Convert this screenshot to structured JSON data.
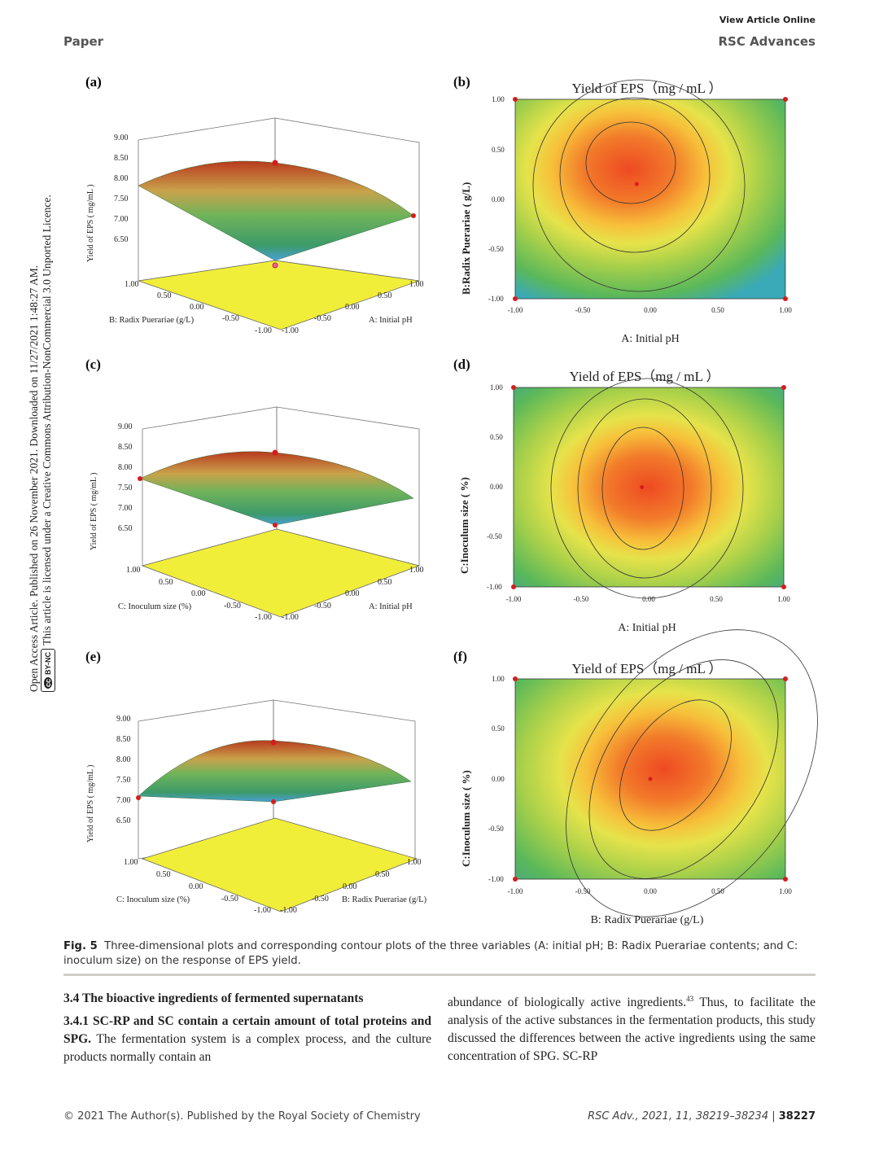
{
  "header": {
    "view_online": "View Article Online",
    "section": "Paper",
    "journal": "RSC Advances"
  },
  "sidebar": {
    "line1": "Open Access Article. Published on 26 November 2021. Downloaded on 11/27/2021 1:48:27 AM.",
    "line2": "This article is licensed under a Creative Commons Attribution-NonCommercial 3.0 Unported Licence.",
    "badge": "BY-NC"
  },
  "figure": {
    "caption_label": "Fig. 5",
    "caption_text": "Three-dimensional plots and corresponding contour plots of the three variables (A: initial pH; B: Radix Puerariae contents; and C: inoculum size) on the response of EPS yield."
  },
  "chart_data": [
    {
      "type": "surface3d",
      "panel": "(a)",
      "zlabel": "Yield of EPS ( mg/mL )",
      "xlabel": "A: Initial pH",
      "ylabel": "B: Radix Puerariae (g/L)",
      "zticks": [
        "9.00",
        "8.50",
        "8.00",
        "7.50",
        "7.00",
        "6.50"
      ],
      "xticks": [
        "-1.00",
        "-0.50",
        "0.00",
        "0.50",
        "1.00"
      ],
      "yticks": [
        "1.00",
        "0.50",
        "0.00",
        "-0.50",
        "-1.00"
      ]
    },
    {
      "type": "contour",
      "panel": "(b)",
      "title": "Yield of EPS（mg / mL ）",
      "xlabel": "A: Initial pH",
      "ylabel": "B:Radix Puerariae ( g/L)",
      "xticks": [
        "-1.00",
        "-0.50",
        "0.00",
        "0.50",
        "1.00"
      ],
      "yticks": [
        "1.00",
        "0.50",
        "0.00",
        "-0.50",
        "-1.00"
      ],
      "optimum": [
        -0.1,
        0.15
      ]
    },
    {
      "type": "surface3d",
      "panel": "(c)",
      "zlabel": "Yield of EPS ( mg/mL )",
      "xlabel": "A: Initial pH",
      "ylabel": "C: Inoculum size (%)",
      "zticks": [
        "9.00",
        "8.50",
        "8.00",
        "7.50",
        "7.00",
        "6.50"
      ],
      "xticks": [
        "-1.00",
        "-0.50",
        "0.00",
        "0.50",
        "1.00"
      ],
      "yticks": [
        "1.00",
        "0.50",
        "0.00",
        "-0.50",
        "-1.00"
      ]
    },
    {
      "type": "contour",
      "panel": "(d)",
      "title": "Yield of EPS（mg / mL ）",
      "xlabel": "A: Initial pH",
      "ylabel": "C:Inoculum size ( %)",
      "xticks": [
        "-1.00",
        "-0.50",
        "0.00",
        "0.50",
        "1.00"
      ],
      "yticks": [
        "1.00",
        "0.50",
        "0.00",
        "-0.50",
        "-1.00"
      ],
      "optimum": [
        -0.05,
        0.0
      ]
    },
    {
      "type": "surface3d",
      "panel": "(e)",
      "zlabel": "Yield of EPS ( mg/mL )",
      "xlabel": "B: Radix Puerariae (g/L)",
      "ylabel": "C: Inoculum size (%)",
      "zticks": [
        "9.00",
        "8.50",
        "8.00",
        "7.50",
        "7.00",
        "6.50"
      ],
      "xticks": [
        "-1.00",
        "-0.50",
        "0.00",
        "0.50",
        "1.00"
      ],
      "yticks": [
        "1.00",
        "0.50",
        "0.00",
        "-0.50",
        "-1.00"
      ]
    },
    {
      "type": "contour",
      "panel": "(f)",
      "title": "Yield of EPS（mg / mL ）",
      "xlabel": "B: Radix Puerariae (g/L)",
      "ylabel": "C:Inoculum size ( %)",
      "xticks": [
        "-1.00",
        "-0.50",
        "0.00",
        "0.50",
        "1.00"
      ],
      "yticks": [
        "1.00",
        "0.50",
        "0.00",
        "-0.50",
        "-1.00"
      ],
      "optimum": [
        0.0,
        0.0
      ]
    }
  ],
  "body": {
    "section_heading": "3.4  The bioactive ingredients of fermented supernatants",
    "subsection_heading": "3.4.1  SC-RP and SC contain a certain amount of total proteins and SPG.",
    "left_text": " The fermentation system is a complex process, and the culture products normally contain an",
    "right_text_a": "abundance of biologically active ingredients.",
    "right_ref": "43",
    "right_text_b": " Thus, to facilitate the analysis of the active substances in the fermentation products, this study discussed the differences between the active ingredients using the same concentration of SPG. SC-RP"
  },
  "footer": {
    "left": "© 2021 The Author(s). Published by the Royal Society of Chemistry",
    "citation": "RSC Adv., 2021, 11, 38219–38234",
    "page": "38227"
  }
}
